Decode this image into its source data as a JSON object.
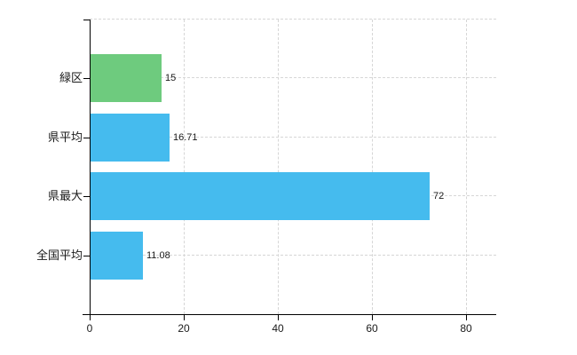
{
  "chart_data": {
    "type": "bar",
    "orientation": "horizontal",
    "title": "",
    "categories": [
      "緑区",
      "県平均",
      "県最大",
      "全国平均"
    ],
    "values": [
      15,
      16.71,
      72,
      11.08
    ],
    "value_labels": [
      "15",
      "16.71",
      "72",
      "11.08"
    ],
    "bar_colors": [
      "#6ecb7e",
      "#45bbee",
      "#45bbee",
      "#45bbee"
    ],
    "xlim": [
      0,
      80
    ],
    "x_ticks": [
      0,
      20,
      40,
      60,
      80
    ],
    "x_tick_labels": [
      "0",
      "20",
      "40",
      "60",
      "80"
    ],
    "grid": true,
    "legend": "none"
  },
  "colors": {
    "background": "#ffffff",
    "axis": "#000000",
    "gridline": "#d6d6d6",
    "text": "#1a1a1a",
    "highlight_bar": "#6ecb7e",
    "default_bar": "#45bbee"
  }
}
